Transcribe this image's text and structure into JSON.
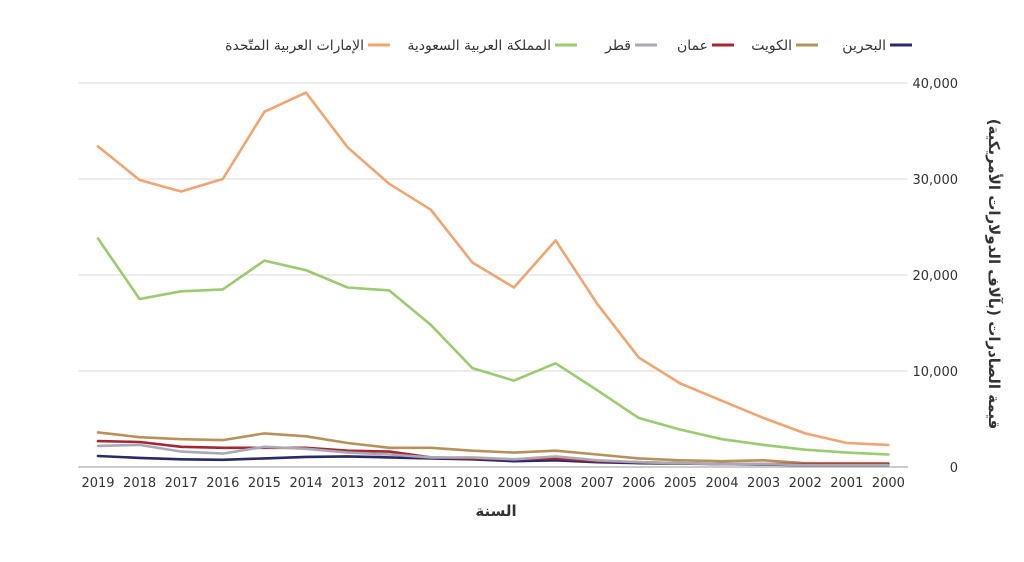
{
  "chart_data": {
    "type": "line",
    "x": [
      2019,
      2018,
      2017,
      2016,
      2015,
      2014,
      2013,
      2012,
      2011,
      2010,
      2009,
      2008,
      2007,
      2006,
      2005,
      2004,
      2003,
      2002,
      2001,
      2000
    ],
    "xlabel": "السنة",
    "ylabel": "قيمة الصادرات (بآلاف الدولارات الأمريكية)",
    "ylim": [
      0,
      40000
    ],
    "yticks": [
      0,
      10000,
      20000,
      30000,
      40000
    ],
    "ytick_labels": [
      "0",
      "10,000",
      "20,000",
      "30,000",
      "40,000"
    ],
    "grid": "horizontal",
    "legend_position": "top",
    "series": [
      {
        "name": "البحرين",
        "color": "#2a2a6a",
        "values": [
          1150,
          950,
          800,
          750,
          900,
          1050,
          1100,
          1000,
          900,
          800,
          600,
          700,
          500,
          400,
          350,
          300,
          250,
          200,
          200,
          200
        ]
      },
      {
        "name": "الكويت",
        "color": "#b8915a",
        "values": [
          3600,
          3100,
          2900,
          2800,
          3500,
          3200,
          2500,
          2000,
          2000,
          1700,
          1500,
          1700,
          1300,
          900,
          700,
          600,
          700,
          400,
          400,
          400
        ]
      },
      {
        "name": "عمان",
        "color": "#a82633",
        "values": [
          2700,
          2600,
          2100,
          2000,
          2000,
          2000,
          1700,
          1600,
          1000,
          900,
          800,
          900,
          600,
          500,
          400,
          300,
          300,
          300,
          300,
          300
        ]
      },
      {
        "name": "قطر",
        "color": "#a9a9b5",
        "values": [
          2200,
          2300,
          1600,
          1400,
          2100,
          1900,
          1500,
          1300,
          1000,
          1000,
          800,
          1100,
          700,
          500,
          400,
          300,
          300,
          200,
          200,
          200
        ]
      },
      {
        "name": "المملكة العربية السعودية",
        "color": "#9acb6e",
        "values": [
          23800,
          17500,
          18300,
          18500,
          21500,
          20500,
          18700,
          18400,
          14800,
          10300,
          9000,
          10800,
          8000,
          5100,
          3900,
          2900,
          2300,
          1800,
          1500,
          1300
        ]
      },
      {
        "name": "الإمارات العربية المتّحدة",
        "color": "#f0a570",
        "values": [
          33400,
          29900,
          28700,
          30000,
          37000,
          39000,
          33300,
          29500,
          26800,
          21300,
          18700,
          23600,
          17000,
          11400,
          8700,
          6900,
          5100,
          3500,
          2500,
          2300
        ]
      }
    ]
  }
}
